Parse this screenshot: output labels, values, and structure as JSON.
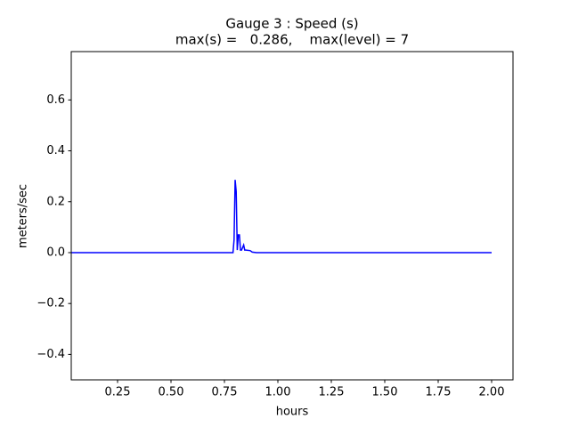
{
  "chart_data": {
    "type": "line",
    "title": "Gauge 3 : Speed (s)",
    "subtitle": "max(s) =   0.286,    max(level) = 7",
    "x_label": "hours",
    "y_label": "meters/sec",
    "xlim": [
      0.0333,
      2.1
    ],
    "ylim": [
      -0.5,
      0.79
    ],
    "xticks": [
      0.25,
      {
        "value": 0.5,
        "label": "0.50"
      },
      0.75,
      {
        "value": 1,
        "label": "1.00"
      },
      1.25,
      {
        "value": 1.5,
        "label": "1.50"
      },
      1.75,
      {
        "value": 2,
        "label": "2.00"
      }
    ],
    "yticks": [
      {
        "value": -0.4,
        "label": "−0.4"
      },
      {
        "value": -0.2,
        "label": "−0.2"
      },
      {
        "value": 0,
        "label": "0.0"
      },
      0.2,
      0.4,
      0.6
    ],
    "grid": false,
    "x": [
      0.0333,
      0.79,
      0.795,
      0.8,
      0.805,
      0.81,
      0.815,
      0.82,
      0.825,
      0.83,
      0.84,
      0.845,
      0.85,
      0.87,
      0.88,
      0.9,
      2.0
    ],
    "series": [
      {
        "name": "speed",
        "color": "#0000ff",
        "values": [
          0,
          0,
          0.05,
          0.286,
          0.24,
          0.01,
          0.07,
          0.07,
          0.01,
          0.01,
          0.03,
          0.01,
          0.01,
          0.008,
          0.002,
          0,
          0
        ]
      }
    ]
  }
}
